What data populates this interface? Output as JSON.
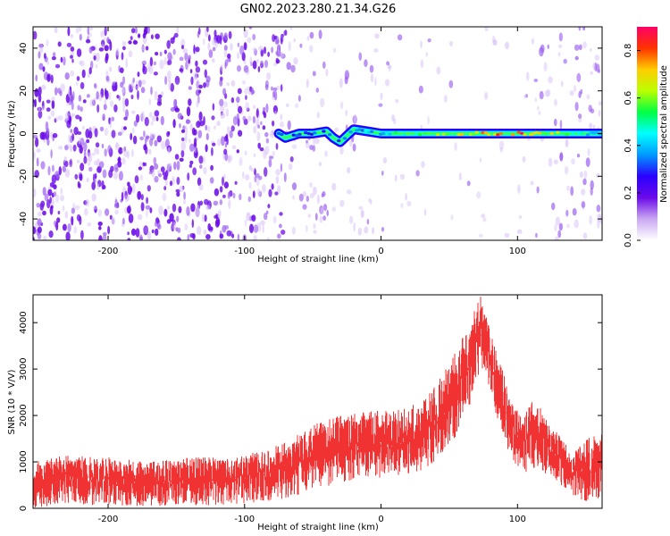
{
  "title": "GN02.2023.280.21.34.G26",
  "chart_data": [
    {
      "type": "heatmap",
      "xlabel": "Height of straight line (km)",
      "ylabel": "Frequency (Hz)",
      "xlim": [
        -255,
        162
      ],
      "ylim": [
        -50,
        50
      ],
      "xticks": [
        -200,
        -100,
        0,
        100
      ],
      "yticks": [
        -40,
        -20,
        0,
        20,
        40
      ],
      "colorbar": {
        "label": "Normalized spectral amplitude",
        "ticks": [
          0.0,
          0.2,
          0.4,
          0.6,
          0.8
        ],
        "range": [
          0.0,
          0.9
        ],
        "colormap": [
          "#ffffff",
          "#c9a8f2",
          "#6a0ae8",
          "#2a00ff",
          "#0099ff",
          "#00ffff",
          "#00ff44",
          "#bbff00",
          "#ffcc00",
          "#ff3300",
          "#ff0066"
        ]
      },
      "ridge": {
        "x": [
          -75,
          -70,
          -60,
          -50,
          -40,
          -35,
          -30,
          -25,
          -20,
          -10,
          0,
          20,
          40,
          60,
          80,
          100,
          120,
          140,
          162
        ],
        "y": [
          0,
          -2,
          0,
          0,
          1,
          -2,
          -4,
          -1,
          2,
          1,
          0,
          0,
          0,
          0,
          0,
          0,
          0,
          0,
          0
        ],
        "amplitude": [
          0.35,
          0.3,
          0.35,
          0.35,
          0.4,
          0.35,
          0.3,
          0.4,
          0.45,
          0.45,
          0.5,
          0.6,
          0.65,
          0.8,
          0.85,
          0.9,
          0.8,
          0.55,
          0.4
        ]
      },
      "noise_density": {
        "x": [
          -255,
          -150,
          -80,
          -60,
          -40,
          -20,
          0,
          50,
          100,
          125,
          162
        ],
        "density": [
          0.9,
          0.85,
          0.75,
          0.3,
          0.25,
          0.2,
          0.12,
          0.08,
          0.06,
          0.25,
          0.3
        ]
      }
    },
    {
      "type": "line",
      "xlabel": "Height of straight line (km)",
      "ylabel": "SNR (10 * V/V)",
      "xlim": [
        -255,
        162
      ],
      "ylim": [
        0,
        4600
      ],
      "xticks": [
        -200,
        -100,
        0,
        100
      ],
      "yticks": [
        0,
        1000,
        2000,
        3000,
        4000
      ],
      "color": "#f03232",
      "series": [
        {
          "x": [
            -255,
            -230,
            -200,
            -170,
            -140,
            -110,
            -80,
            -60,
            -50,
            -30,
            -10,
            10,
            20,
            30,
            40,
            50,
            55,
            60,
            65,
            70,
            73,
            75,
            80,
            85,
            90,
            95,
            100,
            105,
            110,
            115,
            120,
            130,
            140,
            150,
            162
          ],
          "low": [
            0,
            100,
            50,
            50,
            50,
            80,
            150,
            300,
            400,
            550,
            600,
            650,
            700,
            800,
            1000,
            1300,
            1500,
            1800,
            2200,
            2700,
            3000,
            2900,
            2500,
            1900,
            1500,
            1100,
            850,
            750,
            800,
            850,
            750,
            550,
            300,
            100,
            250
          ],
          "high": [
            1000,
            1150,
            1100,
            1000,
            1100,
            1100,
            1300,
            1600,
            1800,
            2000,
            2100,
            2100,
            2200,
            2300,
            2700,
            3100,
            3400,
            3700,
            4000,
            4400,
            4600,
            4400,
            4000,
            3300,
            2900,
            2400,
            2100,
            2000,
            2300,
            2250,
            2000,
            1600,
            1200,
            1500,
            1700
          ]
        }
      ]
    }
  ]
}
